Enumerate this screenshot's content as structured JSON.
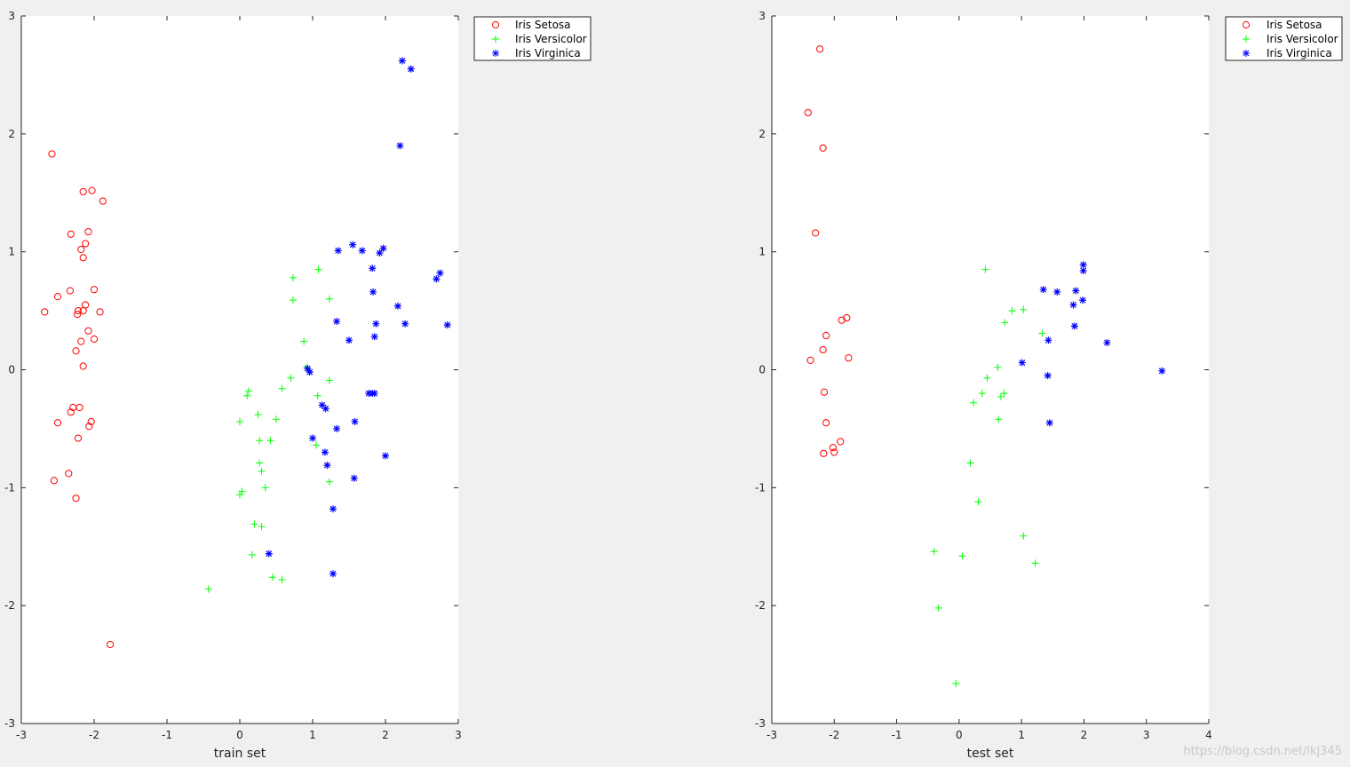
{
  "figure": {
    "watermark": "https://blog.csdn.net/lkj345",
    "colors": {
      "setosa": "#ff0000",
      "versicolor": "#00ff00",
      "virginica": "#0000ff",
      "axes_bg": "#ffffff",
      "figure_bg": "#f0f0f0"
    }
  },
  "chart_data": [
    {
      "type": "scatter",
      "title": "",
      "xlabel": "train set",
      "ylabel": "",
      "xlim": [
        -3,
        3
      ],
      "ylim": [
        -3,
        3
      ],
      "xticks": [
        -3,
        -2,
        -1,
        0,
        1,
        2,
        3
      ],
      "yticks": [
        -3,
        -2,
        -1,
        0,
        1,
        2,
        3
      ],
      "grid": false,
      "legend_position": "outside-top-right",
      "series": [
        {
          "name": "Iris Setosa",
          "marker": "circle",
          "color": "#ff0000",
          "points": [
            [
              -2.58,
              1.83
            ],
            [
              -2.15,
              1.51
            ],
            [
              -2.03,
              1.52
            ],
            [
              -1.88,
              1.43
            ],
            [
              -2.32,
              1.15
            ],
            [
              -2.08,
              1.17
            ],
            [
              -2.12,
              1.07
            ],
            [
              -2.18,
              1.02
            ],
            [
              -2.15,
              0.95
            ],
            [
              -2.0,
              0.68
            ],
            [
              -2.33,
              0.67
            ],
            [
              -2.5,
              0.62
            ],
            [
              -2.12,
              0.55
            ],
            [
              -2.15,
              0.5
            ],
            [
              -2.22,
              0.5
            ],
            [
              -2.23,
              0.47
            ],
            [
              -2.68,
              0.49
            ],
            [
              -1.92,
              0.49
            ],
            [
              -2.08,
              0.33
            ],
            [
              -2.0,
              0.26
            ],
            [
              -2.18,
              0.24
            ],
            [
              -2.25,
              0.16
            ],
            [
              -2.15,
              0.03
            ],
            [
              -2.29,
              -0.32
            ],
            [
              -2.2,
              -0.32
            ],
            [
              -2.32,
              -0.36
            ],
            [
              -2.04,
              -0.44
            ],
            [
              -2.5,
              -0.45
            ],
            [
              -2.07,
              -0.48
            ],
            [
              -2.22,
              -0.58
            ],
            [
              -2.35,
              -0.88
            ],
            [
              -2.55,
              -0.94
            ],
            [
              -2.25,
              -1.09
            ],
            [
              -1.78,
              -2.33
            ]
          ]
        },
        {
          "name": "Iris Versicolor",
          "marker": "plus",
          "color": "#00ff00",
          "points": [
            [
              1.08,
              0.85
            ],
            [
              0.73,
              0.78
            ],
            [
              1.23,
              0.6
            ],
            [
              0.73,
              0.59
            ],
            [
              0.88,
              0.24
            ],
            [
              0.92,
              0.02
            ],
            [
              0.7,
              -0.07
            ],
            [
              1.23,
              -0.09
            ],
            [
              0.58,
              -0.16
            ],
            [
              0.12,
              -0.18
            ],
            [
              0.1,
              -0.22
            ],
            [
              1.07,
              -0.22
            ],
            [
              0.25,
              -0.38
            ],
            [
              0.5,
              -0.42
            ],
            [
              0.0,
              -0.44
            ],
            [
              0.27,
              -0.6
            ],
            [
              0.42,
              -0.6
            ],
            [
              1.05,
              -0.64
            ],
            [
              0.27,
              -0.79
            ],
            [
              0.3,
              -0.86
            ],
            [
              1.23,
              -0.95
            ],
            [
              0.35,
              -1.0
            ],
            [
              0.03,
              -1.03
            ],
            [
              0.0,
              -1.06
            ],
            [
              0.2,
              -1.31
            ],
            [
              0.3,
              -1.33
            ],
            [
              0.17,
              -1.57
            ],
            [
              0.45,
              -1.76
            ],
            [
              0.58,
              -1.78
            ],
            [
              -0.43,
              -1.86
            ]
          ]
        },
        {
          "name": "Iris Virginica",
          "marker": "asterisk",
          "color": "#0000ff",
          "points": [
            [
              2.23,
              2.62
            ],
            [
              2.35,
              2.55
            ],
            [
              2.2,
              1.9
            ],
            [
              1.55,
              1.06
            ],
            [
              1.97,
              1.03
            ],
            [
              1.35,
              1.01
            ],
            [
              1.68,
              1.01
            ],
            [
              1.92,
              0.99
            ],
            [
              1.82,
              0.86
            ],
            [
              2.75,
              0.82
            ],
            [
              2.7,
              0.77
            ],
            [
              1.83,
              0.66
            ],
            [
              2.17,
              0.54
            ],
            [
              1.33,
              0.41
            ],
            [
              1.87,
              0.39
            ],
            [
              2.27,
              0.39
            ],
            [
              2.85,
              0.38
            ],
            [
              1.85,
              0.28
            ],
            [
              1.5,
              0.25
            ],
            [
              0.93,
              0.01
            ],
            [
              0.96,
              -0.02
            ],
            [
              1.77,
              -0.2
            ],
            [
              1.85,
              -0.2
            ],
            [
              1.82,
              -0.2
            ],
            [
              1.13,
              -0.3
            ],
            [
              1.18,
              -0.33
            ],
            [
              1.58,
              -0.44
            ],
            [
              1.33,
              -0.5
            ],
            [
              1.0,
              -0.58
            ],
            [
              1.17,
              -0.7
            ],
            [
              2.0,
              -0.73
            ],
            [
              1.2,
              -0.81
            ],
            [
              1.57,
              -0.92
            ],
            [
              1.28,
              -1.18
            ],
            [
              0.4,
              -1.56
            ],
            [
              1.28,
              -1.73
            ]
          ]
        }
      ]
    },
    {
      "type": "scatter",
      "title": "",
      "xlabel": "test set",
      "ylabel": "",
      "xlim": [
        -3,
        4
      ],
      "ylim": [
        -3,
        3
      ],
      "xticks": [
        -3,
        -2,
        -1,
        0,
        1,
        2,
        3,
        4
      ],
      "yticks": [
        -3,
        -2,
        -1,
        0,
        1,
        2,
        3
      ],
      "grid": false,
      "legend_position": "outside-top-right",
      "series": [
        {
          "name": "Iris Setosa",
          "marker": "circle",
          "color": "#ff0000",
          "points": [
            [
              -2.23,
              2.72
            ],
            [
              -2.42,
              2.18
            ],
            [
              -2.18,
              1.88
            ],
            [
              -2.3,
              1.16
            ],
            [
              -1.8,
              0.44
            ],
            [
              -1.88,
              0.42
            ],
            [
              -2.13,
              0.29
            ],
            [
              -2.18,
              0.17
            ],
            [
              -1.77,
              0.1
            ],
            [
              -2.38,
              0.08
            ],
            [
              -2.16,
              -0.19
            ],
            [
              -2.13,
              -0.45
            ],
            [
              -1.9,
              -0.61
            ],
            [
              -2.02,
              -0.66
            ],
            [
              -2.0,
              -0.7
            ],
            [
              -2.17,
              -0.71
            ]
          ]
        },
        {
          "name": "Iris Versicolor",
          "marker": "plus",
          "color": "#00ff00",
          "points": [
            [
              0.42,
              0.85
            ],
            [
              1.03,
              0.51
            ],
            [
              0.85,
              0.5
            ],
            [
              0.73,
              0.4
            ],
            [
              1.33,
              0.31
            ],
            [
              0.62,
              0.02
            ],
            [
              0.45,
              -0.07
            ],
            [
              0.37,
              -0.2
            ],
            [
              0.72,
              -0.2
            ],
            [
              0.67,
              -0.23
            ],
            [
              0.23,
              -0.28
            ],
            [
              0.63,
              -0.42
            ],
            [
              0.18,
              -0.79
            ],
            [
              0.31,
              -1.12
            ],
            [
              1.03,
              -1.41
            ],
            [
              -0.4,
              -1.54
            ],
            [
              0.05,
              -1.58
            ],
            [
              1.22,
              -1.64
            ],
            [
              -0.33,
              -2.02
            ],
            [
              -0.05,
              -2.66
            ]
          ]
        },
        {
          "name": "Iris Virginica",
          "marker": "asterisk",
          "color": "#0000ff",
          "points": [
            [
              1.99,
              0.89
            ],
            [
              1.99,
              0.84
            ],
            [
              1.35,
              0.68
            ],
            [
              1.87,
              0.67
            ],
            [
              1.57,
              0.66
            ],
            [
              1.98,
              0.59
            ],
            [
              1.83,
              0.55
            ],
            [
              1.85,
              0.37
            ],
            [
              1.43,
              0.25
            ],
            [
              2.37,
              0.23
            ],
            [
              1.01,
              0.06
            ],
            [
              1.42,
              -0.05
            ],
            [
              3.25,
              -0.01
            ],
            [
              1.45,
              -0.45
            ]
          ]
        }
      ]
    }
  ]
}
